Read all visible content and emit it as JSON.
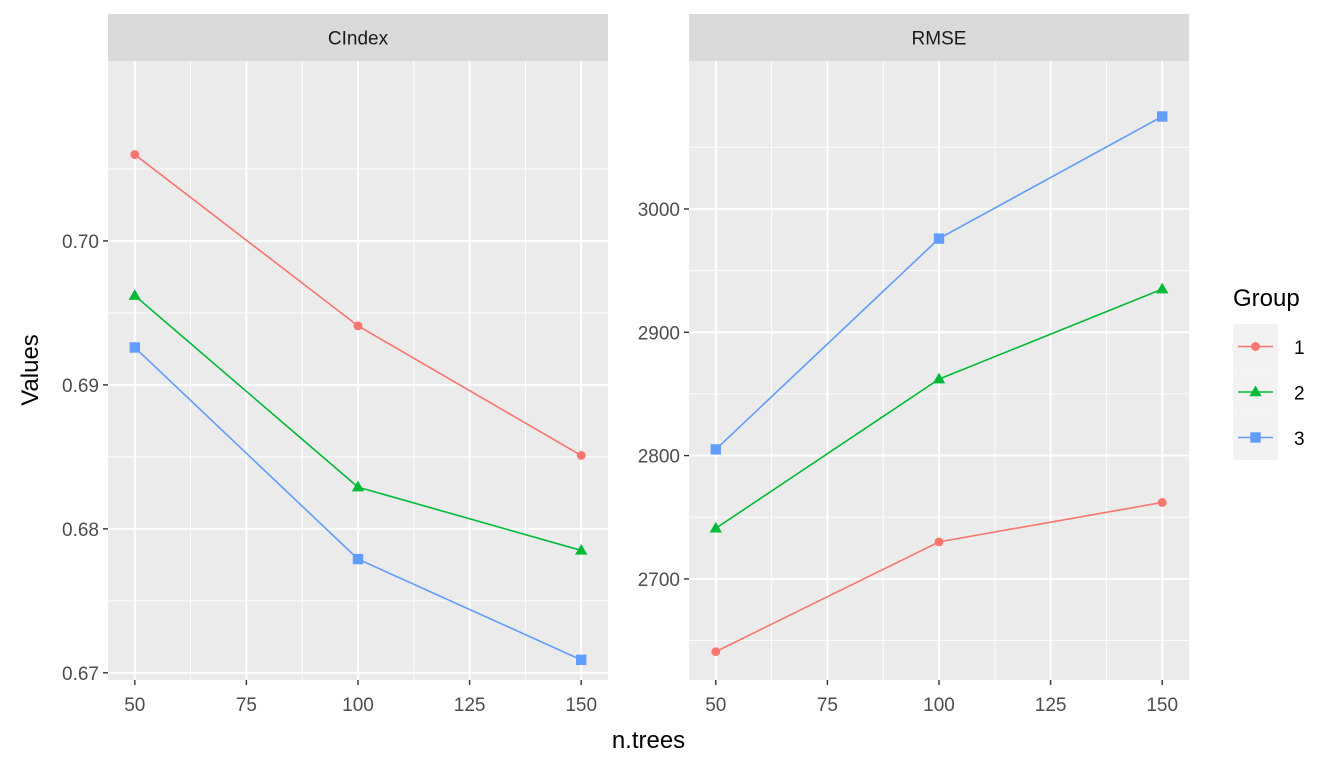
{
  "chart_data": {
    "type": "line",
    "xlabel": "n.trees",
    "ylabel": "Values",
    "legend_title": "Group",
    "legend_position": "right",
    "grid": true,
    "x": [
      50,
      100,
      150
    ],
    "x_ticks": [
      50,
      75,
      100,
      125,
      150
    ],
    "panels": [
      {
        "strip": "CIndex",
        "ylim": [
          0.6695,
          0.7125
        ],
        "y_ticks": [
          0.67,
          0.68,
          0.69,
          0.7
        ],
        "y_tick_labels": [
          "0.67",
          "0.68",
          "0.69",
          "0.70"
        ],
        "series": [
          {
            "name": "1",
            "values": [
              0.706,
              0.6941,
              0.6851
            ]
          },
          {
            "name": "2",
            "values": [
              0.6962,
              0.6829,
              0.6785
            ]
          },
          {
            "name": "3",
            "values": [
              0.6926,
              0.6779,
              0.6709
            ]
          }
        ]
      },
      {
        "strip": "RMSE",
        "ylim": [
          2618,
          3120
        ],
        "y_ticks": [
          2700,
          2800,
          2900,
          3000
        ],
        "y_tick_labels": [
          "2700",
          "2800",
          "2900",
          "3000"
        ],
        "series": [
          {
            "name": "1",
            "values": [
              2641,
              2730,
              2762
            ]
          },
          {
            "name": "2",
            "values": [
              2741,
              2862,
              2935
            ]
          },
          {
            "name": "3",
            "values": [
              2805,
              2976,
              3075
            ]
          }
        ]
      }
    ],
    "legend": [
      {
        "label": "1",
        "color": "#F8766D",
        "shape": "circle"
      },
      {
        "label": "2",
        "color": "#00BA38",
        "shape": "triangle"
      },
      {
        "label": "3",
        "color": "#619CFF",
        "shape": "square"
      }
    ]
  }
}
